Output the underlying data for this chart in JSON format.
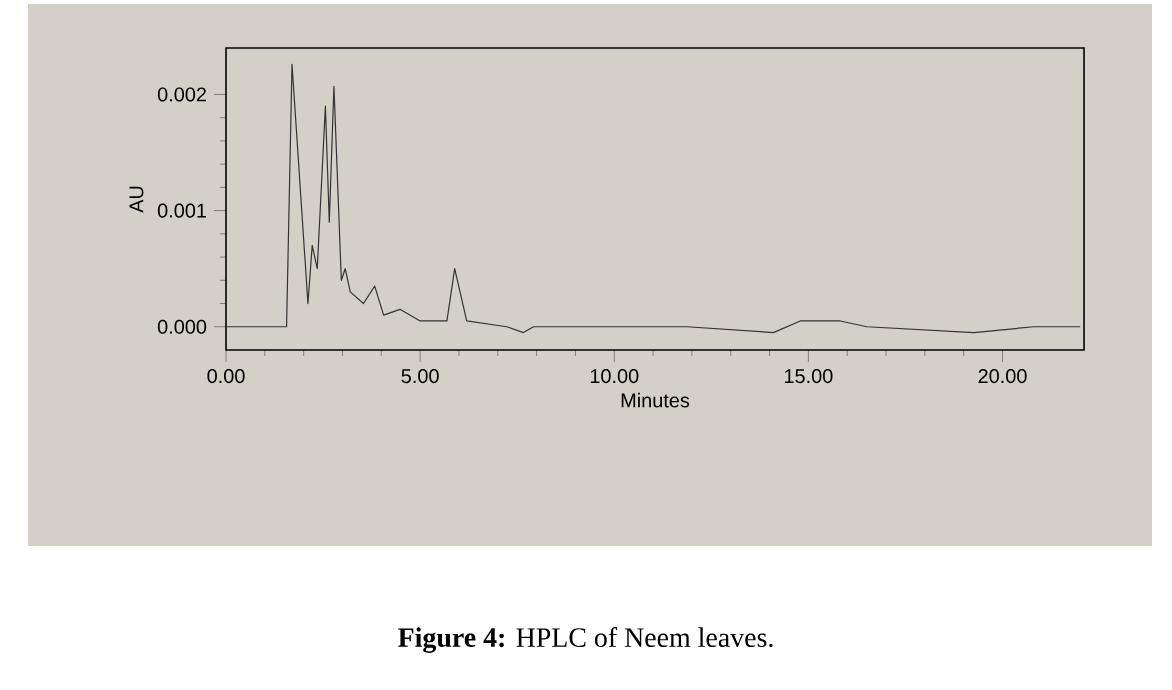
{
  "chart_data": {
    "type": "line",
    "xlabel": "Minutes",
    "ylabel": "AU",
    "x": [
      0,
      1.0,
      1.56,
      1.7,
      2.11,
      2.22,
      2.35,
      2.56,
      2.66,
      2.78,
      2.97,
      3.07,
      3.2,
      3.54,
      3.83,
      4.06,
      4.48,
      5.0,
      5.69,
      5.89,
      6.2,
      7.23,
      7.66,
      7.92,
      8.61,
      9.64,
      11.87,
      14.1,
      14.79,
      15.82,
      16.51,
      19.26,
      20.8,
      22.0
    ],
    "series": [
      {
        "color": "#333333",
        "values": [
          0,
          0,
          0,
          0.00226,
          0.0002,
          0.0007,
          0.0005,
          0.0019,
          0.0009,
          0.00207,
          0.0004,
          0.0005,
          0.0003,
          0.0002,
          0.00035,
          0.0001,
          0.00015,
          5e-05,
          5e-05,
          0.0005,
          5e-05,
          0,
          -5e-05,
          0,
          0,
          0,
          0,
          -5e-05,
          5e-05,
          5e-05,
          0,
          -5e-05,
          0,
          0
        ]
      }
    ],
    "xlim": [
      0,
      22.1
    ],
    "ylim": [
      -0.0002,
      0.0024
    ],
    "xticks": [
      {
        "value": 0,
        "label": "0.00"
      },
      {
        "value": 5,
        "label": "5.00"
      },
      {
        "value": 10,
        "label": "10.00"
      },
      {
        "value": 15,
        "label": "15.00"
      },
      {
        "value": 20,
        "label": "20.00"
      }
    ],
    "yticks": [
      {
        "value": 0,
        "label": "0.000"
      },
      {
        "value": 0.001,
        "label": "0.001"
      },
      {
        "value": 0.002,
        "label": "0.002"
      }
    ],
    "grid": false,
    "marker": "none",
    "line_style": "solid",
    "annotations": [
      "**Figure 4:**  HPLC of Neem leaves."
    ]
  }
}
